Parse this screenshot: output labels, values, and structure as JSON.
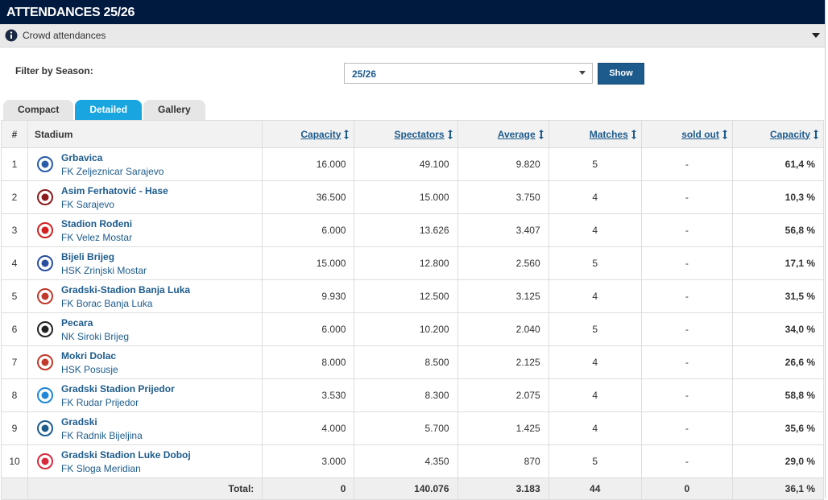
{
  "header": {
    "title": "ATTENDANCES 25/26"
  },
  "panel": {
    "title": "Crowd attendances"
  },
  "filter": {
    "label": "Filter by Season:",
    "selected": "25/26",
    "button": "Show"
  },
  "tabs": [
    "Compact",
    "Detailed",
    "Gallery"
  ],
  "table": {
    "columns": [
      "#",
      "Stadium",
      "Capacity",
      "Spectators",
      "Average",
      "Matches",
      "sold out",
      "Capacity"
    ],
    "rows": [
      {
        "rank": "1",
        "stadium": "Grbavica",
        "club": "FK Zeljeznicar Sarajevo",
        "capacity": "16.000",
        "spectators": "49.100",
        "average": "9.820",
        "matches": "5",
        "sold_out": "-",
        "capacity_pct": "61,4 %"
      },
      {
        "rank": "2",
        "stadium": "Asim Ferhatović - Hase",
        "club": "FK Sarajevo",
        "capacity": "36.500",
        "spectators": "15.000",
        "average": "3.750",
        "matches": "4",
        "sold_out": "-",
        "capacity_pct": "10,3 %"
      },
      {
        "rank": "3",
        "stadium": "Stadion Rođeni",
        "club": "FK Velez Mostar",
        "capacity": "6.000",
        "spectators": "13.626",
        "average": "3.407",
        "matches": "4",
        "sold_out": "-",
        "capacity_pct": "56,8 %"
      },
      {
        "rank": "4",
        "stadium": "Bijeli Brijeg",
        "club": "HSK Zrinjski Mostar",
        "capacity": "15.000",
        "spectators": "12.800",
        "average": "2.560",
        "matches": "5",
        "sold_out": "-",
        "capacity_pct": "17,1 %"
      },
      {
        "rank": "5",
        "stadium": "Gradski-Stadion Banja Luka",
        "club": "FK Borac Banja Luka",
        "capacity": "9.930",
        "spectators": "12.500",
        "average": "3.125",
        "matches": "4",
        "sold_out": "-",
        "capacity_pct": "31,5 %"
      },
      {
        "rank": "6",
        "stadium": "Pecara",
        "club": "NK Siroki Brijeg",
        "capacity": "6.000",
        "spectators": "10.200",
        "average": "2.040",
        "matches": "5",
        "sold_out": "-",
        "capacity_pct": "34,0 %"
      },
      {
        "rank": "7",
        "stadium": "Mokri Dolac",
        "club": "HSK Posusje",
        "capacity": "8.000",
        "spectators": "8.500",
        "average": "2.125",
        "matches": "4",
        "sold_out": "-",
        "capacity_pct": "26,6 %"
      },
      {
        "rank": "8",
        "stadium": "Gradski Stadion Prijedor",
        "club": "FK Rudar Prijedor",
        "capacity": "3.530",
        "spectators": "8.300",
        "average": "2.075",
        "matches": "4",
        "sold_out": "-",
        "capacity_pct": "58,8 %"
      },
      {
        "rank": "9",
        "stadium": "Gradski",
        "club": "FK Radnik Bijeljina",
        "capacity": "4.000",
        "spectators": "5.700",
        "average": "1.425",
        "matches": "4",
        "sold_out": "-",
        "capacity_pct": "35,6 %"
      },
      {
        "rank": "10",
        "stadium": "Gradski Stadion Luke Doboj",
        "club": "FK Sloga Meridian",
        "capacity": "3.000",
        "spectators": "4.350",
        "average": "870",
        "matches": "5",
        "sold_out": "-",
        "capacity_pct": "29,0 %"
      }
    ],
    "total": {
      "label": "Total:",
      "capacity": "0",
      "spectators": "140.076",
      "average": "3.183",
      "matches": "44",
      "sold_out": "0",
      "capacity_pct": "36,1 %"
    }
  }
}
